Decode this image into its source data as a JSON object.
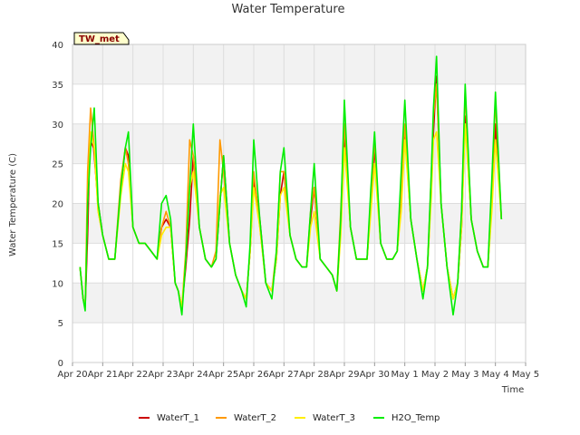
{
  "chart_data": {
    "type": "line",
    "title": "Water Temperature",
    "xlabel": "Time",
    "ylabel": "Water Temperature (C)",
    "station_badge": "TW_met",
    "ylim": [
      0,
      40
    ],
    "yticks": [
      0,
      5,
      10,
      15,
      20,
      25,
      30,
      35,
      40
    ],
    "xlim": [
      0,
      15
    ],
    "xticks": [
      {
        "x": 0,
        "label": "Apr 20"
      },
      {
        "x": 1,
        "label": "Apr 21"
      },
      {
        "x": 2,
        "label": "Apr 22"
      },
      {
        "x": 3,
        "label": "Apr 23"
      },
      {
        "x": 4,
        "label": "Apr 24"
      },
      {
        "x": 5,
        "label": "Apr 25"
      },
      {
        "x": 6,
        "label": "Apr 26"
      },
      {
        "x": 7,
        "label": "Apr 27"
      },
      {
        "x": 8,
        "label": "Apr 28"
      },
      {
        "x": 9,
        "label": "Apr 29"
      },
      {
        "x": 10,
        "label": "Apr 30"
      },
      {
        "x": 11,
        "label": "May 1"
      },
      {
        "x": 12,
        "label": "May 2"
      },
      {
        "x": 13,
        "label": "May 3"
      },
      {
        "x": 14,
        "label": "May 4"
      },
      {
        "x": 15,
        "label": "May 5"
      }
    ],
    "grid": true,
    "legend_position": "bottom",
    "series": [
      {
        "name": "WaterT_1",
        "color": "#cc0000",
        "x": [
          0.25,
          0.35,
          0.42,
          0.5,
          0.58,
          0.7,
          0.85,
          1.0,
          1.2,
          1.4,
          1.6,
          1.75,
          1.85,
          2.0,
          2.2,
          2.4,
          2.6,
          2.8,
          2.95,
          3.1,
          3.25,
          3.4,
          3.5,
          3.62,
          3.75,
          3.88,
          4.0,
          4.2,
          4.4,
          4.6,
          4.75,
          4.88,
          5.0,
          5.2,
          5.4,
          5.6,
          5.75,
          5.88,
          6.0,
          6.2,
          6.4,
          6.6,
          6.75,
          6.88,
          7.0,
          7.2,
          7.4,
          7.6,
          7.75,
          7.88,
          8.0,
          8.2,
          8.4,
          8.6,
          8.75,
          8.88,
          9.0,
          9.2,
          9.4,
          9.6,
          9.75,
          9.88,
          10.0,
          10.2,
          10.4,
          10.6,
          10.75,
          10.88,
          11.0,
          11.2,
          11.4,
          11.6,
          11.75,
          11.88,
          11.95,
          12.05,
          12.2,
          12.4,
          12.6,
          12.75,
          12.88,
          13.0,
          13.2,
          13.4,
          13.6,
          13.75,
          13.88,
          14.0,
          14.2
        ],
        "y": [
          12,
          8,
          7,
          16,
          28,
          27,
          20,
          16,
          13,
          13,
          22,
          27,
          26,
          17,
          15,
          15,
          14,
          13,
          17,
          18,
          17,
          10,
          9,
          7,
          12,
          18,
          26,
          17,
          13,
          12,
          13,
          20,
          26,
          15,
          11,
          9,
          8,
          14,
          23,
          18,
          10,
          9,
          13,
          21,
          24,
          16,
          13,
          12,
          12,
          18,
          22,
          13,
          12,
          11,
          9,
          17,
          29,
          17,
          13,
          13,
          13,
          20,
          27,
          15,
          13,
          13,
          14,
          20,
          29,
          18,
          13,
          9,
          12,
          22,
          29,
          36,
          20,
          12,
          8,
          10,
          17,
          31,
          18,
          14,
          12,
          12,
          20,
          30,
          18
        ]
      },
      {
        "name": "WaterT_2",
        "color": "#ff9900",
        "x": [
          0.25,
          0.35,
          0.42,
          0.5,
          0.6,
          0.72,
          0.85,
          1.0,
          1.2,
          1.4,
          1.6,
          1.75,
          1.85,
          2.0,
          2.2,
          2.4,
          2.6,
          2.8,
          2.95,
          3.1,
          3.25,
          3.4,
          3.5,
          3.62,
          3.75,
          3.88,
          4.0,
          4.2,
          4.4,
          4.6,
          4.75,
          4.88,
          5.0,
          5.2,
          5.4,
          5.6,
          5.75,
          5.88,
          6.0,
          6.2,
          6.4,
          6.6,
          6.75,
          6.88,
          7.0,
          7.2,
          7.4,
          7.6,
          7.75,
          7.88,
          8.0,
          8.2,
          8.4,
          8.6,
          8.75,
          8.88,
          9.0,
          9.2,
          9.4,
          9.6,
          9.75,
          9.88,
          10.0,
          10.2,
          10.4,
          10.6,
          10.75,
          10.88,
          11.0,
          11.2,
          11.4,
          11.6,
          11.75,
          11.88,
          11.95,
          12.05,
          12.2,
          12.4,
          12.6,
          12.75,
          12.88,
          13.0,
          13.2,
          13.4,
          13.6,
          13.75,
          13.88,
          14.0,
          14.2
        ],
        "y": [
          12,
          8,
          7,
          24,
          32,
          27,
          19,
          16,
          13,
          13,
          23,
          27,
          25,
          17,
          15,
          15,
          14,
          13,
          17,
          19,
          17,
          10,
          9,
          7,
          14,
          28,
          26,
          17,
          13,
          12,
          14,
          28,
          24,
          15,
          11,
          9,
          8,
          14,
          24,
          17,
          10,
          9,
          14,
          24,
          24,
          16,
          13,
          12,
          12,
          19,
          22,
          13,
          12,
          11,
          9,
          19,
          30,
          17,
          13,
          13,
          13,
          21,
          28,
          15,
          13,
          13,
          14,
          22,
          30,
          18,
          13,
          9,
          12,
          24,
          31,
          35,
          20,
          12,
          8,
          10,
          19,
          34,
          18,
          14,
          12,
          12,
          22,
          33,
          18
        ]
      },
      {
        "name": "WaterT_3",
        "color": "#ffee00",
        "x": [
          0.25,
          0.35,
          0.42,
          0.5,
          0.6,
          0.72,
          0.85,
          1.0,
          1.2,
          1.4,
          1.6,
          1.75,
          1.85,
          2.0,
          2.2,
          2.4,
          2.6,
          2.8,
          2.95,
          3.1,
          3.25,
          3.4,
          3.5,
          3.62,
          3.75,
          3.88,
          4.0,
          4.2,
          4.4,
          4.6,
          4.75,
          4.88,
          5.0,
          5.2,
          5.4,
          5.6,
          5.75,
          5.88,
          6.0,
          6.2,
          6.4,
          6.6,
          6.75,
          6.88,
          7.0,
          7.2,
          7.4,
          7.6,
          7.75,
          7.88,
          8.0,
          8.2,
          8.4,
          8.6,
          8.75,
          8.88,
          9.0,
          9.2,
          9.4,
          9.6,
          9.75,
          9.88,
          10.0,
          10.2,
          10.4,
          10.6,
          10.75,
          10.88,
          11.0,
          11.2,
          11.4,
          11.6,
          11.75,
          11.88,
          11.95,
          12.05,
          12.2,
          12.4,
          12.6,
          12.75,
          12.88,
          13.0,
          13.2,
          13.4,
          13.6,
          13.75,
          13.88,
          14.0,
          14.2
        ],
        "y": [
          12,
          8,
          7,
          20,
          29,
          27,
          19,
          16,
          13,
          13,
          21,
          25,
          24,
          17,
          15,
          15,
          14,
          13,
          16,
          17,
          17,
          10,
          9,
          7,
          13,
          22,
          24,
          17,
          13,
          12,
          13,
          21,
          22,
          15,
          11,
          9,
          8,
          14,
          22,
          17,
          10,
          9,
          13,
          21,
          22,
          16,
          13,
          12,
          12,
          17,
          19,
          13,
          12,
          11,
          9,
          16,
          27,
          17,
          13,
          13,
          13,
          19,
          25,
          15,
          13,
          13,
          14,
          19,
          28,
          18,
          13,
          9,
          12,
          21,
          28,
          29,
          20,
          12,
          8,
          10,
          17,
          30,
          18,
          14,
          12,
          12,
          19,
          28,
          18
        ]
      },
      {
        "name": "H2O_Temp",
        "color": "#00ee00",
        "x": [
          0.25,
          0.35,
          0.42,
          0.5,
          0.6,
          0.72,
          0.85,
          1.0,
          1.2,
          1.4,
          1.6,
          1.75,
          1.85,
          2.0,
          2.2,
          2.4,
          2.6,
          2.8,
          2.95,
          3.1,
          3.25,
          3.4,
          3.5,
          3.62,
          3.75,
          3.88,
          4.0,
          4.2,
          4.4,
          4.6,
          4.75,
          4.88,
          5.0,
          5.2,
          5.4,
          5.6,
          5.75,
          5.88,
          6.0,
          6.2,
          6.4,
          6.6,
          6.75,
          6.88,
          7.0,
          7.2,
          7.4,
          7.6,
          7.75,
          7.88,
          8.0,
          8.2,
          8.4,
          8.6,
          8.75,
          8.88,
          9.0,
          9.2,
          9.4,
          9.6,
          9.75,
          9.88,
          10.0,
          10.2,
          10.4,
          10.6,
          10.75,
          10.88,
          11.0,
          11.2,
          11.4,
          11.6,
          11.75,
          11.88,
          11.95,
          12.05,
          12.2,
          12.4,
          12.6,
          12.75,
          12.88,
          13.0,
          13.2,
          13.4,
          13.6,
          13.75,
          13.88,
          14.0,
          14.2
        ],
        "y": [
          12,
          8,
          6.5,
          20,
          27,
          32,
          20,
          16,
          13,
          13,
          22,
          27,
          29,
          17,
          15,
          15,
          14,
          13,
          20,
          21,
          18,
          10,
          9,
          6,
          13,
          22,
          30,
          17,
          13,
          12,
          13,
          20,
          26,
          15,
          11,
          9,
          7,
          15,
          28,
          18,
          10,
          8,
          14,
          24,
          27,
          16,
          13,
          12,
          12,
          19,
          25,
          13,
          12,
          11,
          9,
          18,
          33,
          17,
          13,
          13,
          13,
          22,
          29,
          15,
          13,
          13,
          14,
          24,
          33,
          18,
          13,
          8,
          12,
          24,
          32,
          38.5,
          20,
          12,
          6,
          10,
          19,
          35,
          18,
          14,
          12,
          12,
          23,
          34,
          18
        ]
      }
    ]
  }
}
